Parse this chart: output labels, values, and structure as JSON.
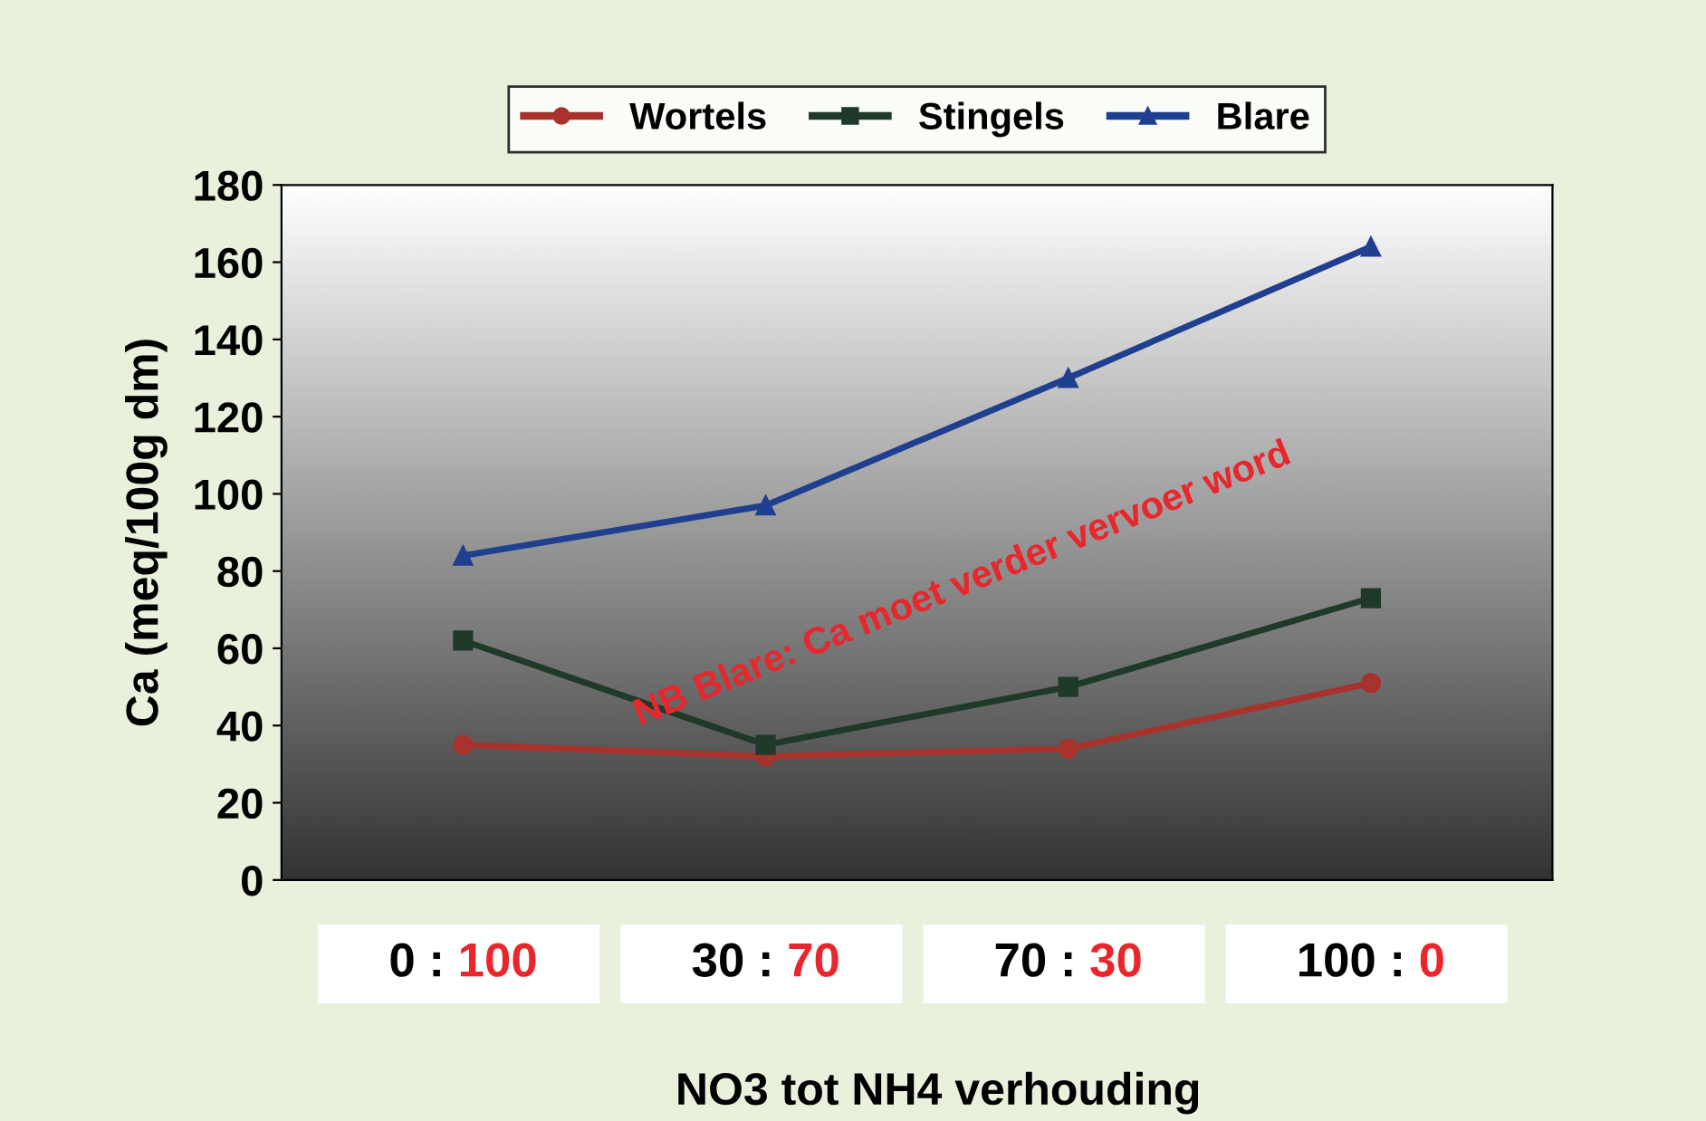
{
  "chart_data": {
    "type": "line",
    "xlabel": "NO3 tot NH4 verhouding",
    "ylabel": "Ca (meq/100g dm)",
    "categories": [
      "0 : 100",
      "30 : 70",
      "70 : 30",
      "100 : 0"
    ],
    "series": [
      {
        "name": "Wortels",
        "color": "#a8332c",
        "marker": "circle",
        "values": [
          35,
          32,
          34,
          51
        ]
      },
      {
        "name": "Stingels",
        "color": "#1f3a28",
        "marker": "square",
        "values": [
          62,
          35,
          50,
          73
        ]
      },
      {
        "name": "Blare",
        "color": "#1f3f8f",
        "marker": "triangle",
        "values": [
          84,
          97,
          130,
          164
        ]
      }
    ],
    "ylim": [
      0,
      180
    ],
    "yticks": [
      0,
      20,
      40,
      60,
      80,
      100,
      120,
      140,
      160,
      180
    ],
    "grid": false,
    "legend": "top",
    "line_style": "solid",
    "annotations": [
      "NB Blare: Ca moet verder vervoer word"
    ]
  }
}
